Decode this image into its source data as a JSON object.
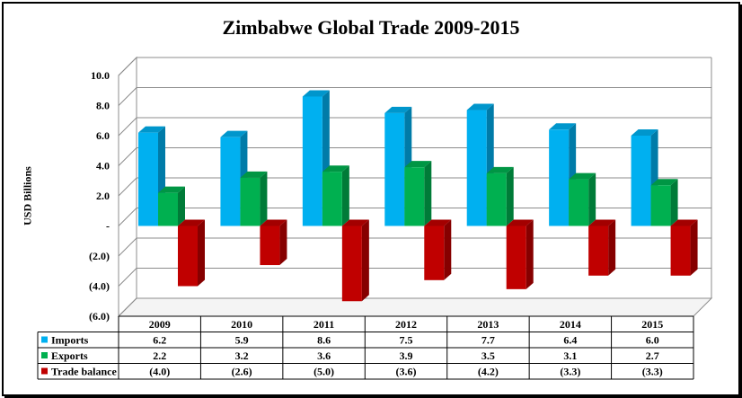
{
  "chart_data": {
    "type": "bar",
    "title": "Zimbabwe Global Trade 2009-2015",
    "ylabel": "USD Billions",
    "xlabel": "",
    "ylim": [
      -6.0,
      10.0
    ],
    "yticks": [
      "10.0",
      "8.0",
      "6.0",
      "4.0",
      "2.0",
      "-",
      "(2.0)",
      "(4.0)",
      "(6.0)"
    ],
    "ytick_values": [
      10,
      8,
      6,
      4,
      2,
      0,
      -2,
      -4,
      -6
    ],
    "categories": [
      "2009",
      "2010",
      "2011",
      "2012",
      "2013",
      "2014",
      "2015"
    ],
    "series": [
      {
        "name": "Imports",
        "color": "#00B0F0",
        "values": [
          6.2,
          5.9,
          8.6,
          7.5,
          7.7,
          6.4,
          6.0
        ],
        "labels": [
          "6.2",
          "5.9",
          "8.6",
          "7.5",
          "7.7",
          "6.4",
          "6.0"
        ]
      },
      {
        "name": "Exports",
        "color": "#00B050",
        "values": [
          2.2,
          3.2,
          3.6,
          3.9,
          3.5,
          3.1,
          2.7
        ],
        "labels": [
          "2.2",
          "3.2",
          "3.6",
          "3.9",
          "3.5",
          "3.1",
          "2.7"
        ]
      },
      {
        "name": "Trade balance",
        "color": "#C00000",
        "values": [
          -4.0,
          -2.6,
          -5.0,
          -3.6,
          -4.2,
          -3.3,
          -3.3
        ],
        "labels": [
          "(4.0)",
          "(2.6)",
          "(5.0)",
          "(3.6)",
          "(4.2)",
          "(3.3)",
          "(3.3)"
        ]
      }
    ],
    "grid": true,
    "legend": "data-table"
  }
}
